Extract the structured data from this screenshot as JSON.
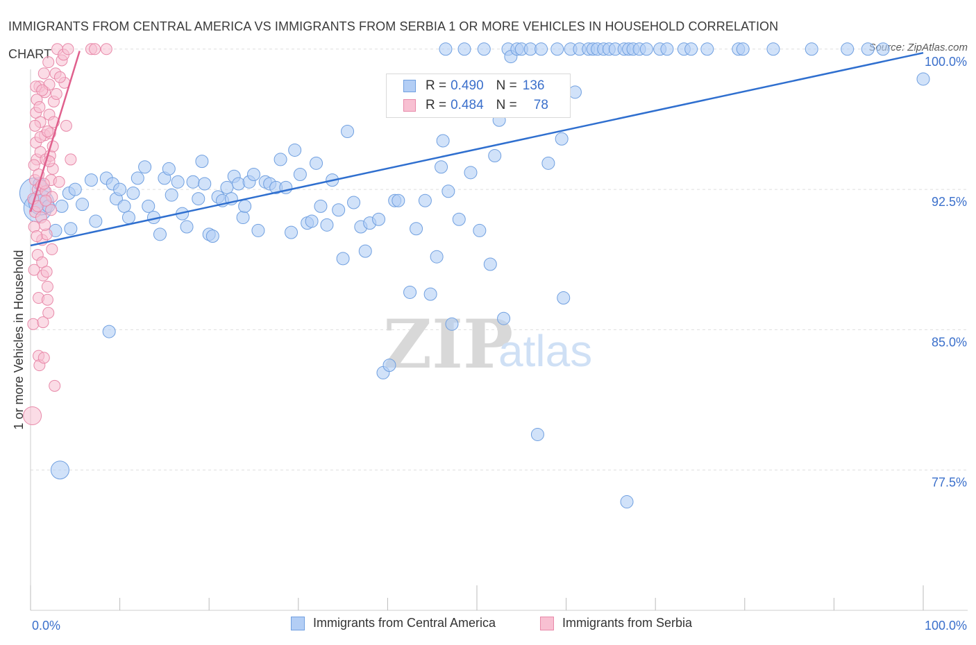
{
  "title": "IMMIGRANTS FROM CENTRAL AMERICA VS IMMIGRANTS FROM SERBIA 1 OR MORE VEHICLES IN HOUSEHOLD CORRELATION CHART",
  "source": "Source: ZipAtlas.com",
  "watermark": {
    "zip": "ZIP",
    "atlas": "atlas"
  },
  "colors": {
    "blue_fill": "#b3cef5",
    "blue_stroke": "#6f9fe0",
    "blue_line": "#2f6fcf",
    "pink_fill": "#f8c0d2",
    "pink_stroke": "#e889a9",
    "pink_line": "#e0608d",
    "axis_text": "#3a6fcb",
    "grid": "#dddddd"
  },
  "legend": {
    "r_label": "R =",
    "n_label": "N =",
    "rows": [
      {
        "r": "0.490",
        "n": "136"
      },
      {
        "r": "0.484",
        "n": "78"
      }
    ]
  },
  "chart_data": {
    "type": "scatter",
    "title": "IMMIGRANTS FROM CENTRAL AMERICA VS IMMIGRANTS FROM SERBIA 1 OR MORE VEHICLES IN HOUSEHOLD CORRELATION CHART",
    "xlabel": "",
    "ylabel": "1 or more Vehicles in Household",
    "xlim": [
      0,
      100
    ],
    "ylim": [
      70,
      100.4
    ],
    "x_tick_labels": [
      "0.0%",
      "100.0%"
    ],
    "y_ticks": [
      77.5,
      85.0,
      92.5,
      100.0
    ],
    "y_tick_labels": [
      "77.5%",
      "85.0%",
      "92.5%",
      "100.0%"
    ],
    "grid": true,
    "legend_position": "top-center",
    "series": [
      {
        "name": "Immigrants from Central America",
        "color": "#b3cef5",
        "trend": {
          "x": [
            0,
            100
          ],
          "y": [
            89.5,
            99.8
          ]
        },
        "points": [
          [
            0.5,
            92.3
          ],
          [
            0.8,
            91.5
          ],
          [
            1.2,
            91.8
          ],
          [
            1.0,
            92.8
          ],
          [
            2.0,
            91.6
          ],
          [
            2.8,
            90.3
          ],
          [
            3.5,
            91.6
          ],
          [
            4.3,
            92.3
          ],
          [
            4.5,
            90.4
          ],
          [
            5.0,
            92.5
          ],
          [
            5.8,
            91.7
          ],
          [
            6.8,
            93.0
          ],
          [
            7.3,
            90.8
          ],
          [
            8.5,
            93.1
          ],
          [
            9.2,
            92.8
          ],
          [
            9.6,
            92.0
          ],
          [
            10.0,
            92.5
          ],
          [
            10.5,
            91.6
          ],
          [
            11.0,
            91.0
          ],
          [
            11.5,
            92.3
          ],
          [
            12.0,
            93.1
          ],
          [
            12.8,
            93.7
          ],
          [
            13.2,
            91.6
          ],
          [
            13.8,
            91.0
          ],
          [
            14.5,
            90.1
          ],
          [
            15.0,
            93.1
          ],
          [
            15.5,
            93.6
          ],
          [
            15.8,
            92.2
          ],
          [
            16.5,
            92.9
          ],
          [
            17.0,
            91.2
          ],
          [
            17.5,
            90.5
          ],
          [
            18.2,
            92.9
          ],
          [
            18.8,
            92.0
          ],
          [
            19.2,
            94.0
          ],
          [
            19.5,
            92.8
          ],
          [
            20.0,
            90.1
          ],
          [
            20.4,
            90.0
          ],
          [
            21.0,
            92.1
          ],
          [
            21.5,
            91.9
          ],
          [
            22.0,
            92.6
          ],
          [
            22.5,
            92.0
          ],
          [
            22.8,
            93.2
          ],
          [
            23.3,
            92.8
          ],
          [
            23.8,
            91.0
          ],
          [
            24.0,
            91.6
          ],
          [
            24.5,
            92.9
          ],
          [
            25.0,
            93.3
          ],
          [
            25.5,
            90.3
          ],
          [
            26.3,
            92.9
          ],
          [
            26.8,
            92.8
          ],
          [
            27.5,
            92.6
          ],
          [
            28.0,
            94.1
          ],
          [
            28.6,
            92.6
          ],
          [
            29.2,
            90.2
          ],
          [
            29.6,
            94.6
          ],
          [
            30.2,
            93.3
          ],
          [
            31.0,
            90.7
          ],
          [
            31.5,
            90.8
          ],
          [
            32.0,
            93.9
          ],
          [
            32.5,
            91.6
          ],
          [
            33.2,
            90.6
          ],
          [
            33.8,
            93.0
          ],
          [
            34.5,
            91.4
          ],
          [
            35.0,
            88.8
          ],
          [
            35.5,
            95.6
          ],
          [
            36.2,
            91.8
          ],
          [
            37.0,
            90.5
          ],
          [
            37.5,
            89.2
          ],
          [
            38.0,
            90.7
          ],
          [
            39.0,
            90.9
          ],
          [
            39.5,
            82.7
          ],
          [
            40.2,
            83.1
          ],
          [
            40.8,
            91.9
          ],
          [
            41.2,
            91.9
          ],
          [
            41.8,
            98.0
          ],
          [
            42.5,
            87.0
          ],
          [
            43.2,
            90.4
          ],
          [
            43.8,
            96.8
          ],
          [
            44.2,
            91.9
          ],
          [
            44.8,
            86.9
          ],
          [
            45.5,
            88.9
          ],
          [
            46.0,
            93.7
          ],
          [
            46.2,
            95.1
          ],
          [
            46.8,
            92.4
          ],
          [
            46.5,
            100.0
          ],
          [
            47.2,
            85.3
          ],
          [
            48.0,
            90.9
          ],
          [
            48.6,
            100.0
          ],
          [
            49.3,
            93.4
          ],
          [
            50.3,
            90.3
          ],
          [
            50.8,
            100.0
          ],
          [
            51.5,
            88.5
          ],
          [
            52.0,
            94.3
          ],
          [
            52.5,
            96.2
          ],
          [
            53.0,
            85.6
          ],
          [
            53.5,
            100.0
          ],
          [
            53.8,
            99.6
          ],
          [
            54.5,
            100.0
          ],
          [
            55.0,
            100.0
          ],
          [
            56.0,
            100.0
          ],
          [
            56.8,
            79.4
          ],
          [
            57.2,
            100.0
          ],
          [
            58.0,
            93.9
          ],
          [
            59.0,
            100.0
          ],
          [
            59.5,
            95.2
          ],
          [
            59.7,
            86.7
          ],
          [
            60.5,
            100.0
          ],
          [
            61.0,
            97.7
          ],
          [
            61.5,
            100.0
          ],
          [
            62.5,
            100.0
          ],
          [
            63.0,
            100.0
          ],
          [
            63.5,
            100.0
          ],
          [
            64.2,
            100.0
          ],
          [
            64.8,
            100.0
          ],
          [
            65.5,
            100.0
          ],
          [
            66.5,
            100.0
          ],
          [
            67.0,
            100.0
          ],
          [
            67.5,
            100.0
          ],
          [
            68.2,
            100.0
          ],
          [
            69.0,
            100.0
          ],
          [
            70.5,
            100.0
          ],
          [
            71.3,
            100.0
          ],
          [
            73.2,
            100.0
          ],
          [
            74.0,
            100.0
          ],
          [
            75.8,
            100.0
          ],
          [
            79.3,
            100.0
          ],
          [
            79.8,
            100.0
          ],
          [
            83.2,
            100.0
          ],
          [
            87.5,
            100.0
          ],
          [
            91.5,
            100.0
          ],
          [
            93.8,
            100.0
          ],
          [
            95.5,
            100.0
          ],
          [
            100.0,
            98.4
          ],
          [
            3.3,
            77.5
          ],
          [
            8.8,
            84.9
          ],
          [
            66.8,
            75.8
          ]
        ],
        "sizes": [
          [
            0.5,
            92.3,
            44
          ],
          [
            0.8,
            91.5,
            40
          ],
          [
            1.2,
            91.8,
            36
          ],
          [
            3.3,
            77.5,
            26
          ]
        ]
      },
      {
        "name": "Immigrants from Serbia",
        "color": "#f8c0d2",
        "trend": {
          "x": [
            0,
            5.5
          ],
          "y": [
            91.3,
            99.9
          ]
        },
        "points": [
          [
            0.2,
            80.4
          ],
          [
            0.3,
            85.3
          ],
          [
            0.4,
            88.2
          ],
          [
            0.4,
            90.5
          ],
          [
            0.5,
            91.3
          ],
          [
            0.5,
            93.0
          ],
          [
            0.6,
            95.0
          ],
          [
            0.6,
            96.6
          ],
          [
            0.7,
            97.3
          ],
          [
            0.7,
            94.1
          ],
          [
            0.8,
            92.5
          ],
          [
            0.8,
            89.0
          ],
          [
            0.9,
            86.7
          ],
          [
            0.9,
            83.6
          ],
          [
            1.0,
            83.1
          ],
          [
            1.0,
            98.0
          ],
          [
            1.1,
            96.1
          ],
          [
            1.1,
            94.5
          ],
          [
            1.2,
            92.7
          ],
          [
            1.2,
            91.0
          ],
          [
            1.3,
            89.8
          ],
          [
            1.3,
            88.6
          ],
          [
            1.4,
            87.9
          ],
          [
            1.4,
            85.4
          ],
          [
            1.5,
            83.5
          ],
          [
            1.5,
            98.7
          ],
          [
            1.6,
            97.7
          ],
          [
            1.6,
            95.4
          ],
          [
            1.7,
            94.1
          ],
          [
            1.7,
            92.4
          ],
          [
            1.8,
            90.1
          ],
          [
            1.8,
            88.1
          ],
          [
            1.9,
            86.6
          ],
          [
            1.9,
            87.3
          ],
          [
            2.0,
            85.9
          ],
          [
            2.0,
            99.3
          ],
          [
            2.1,
            98.1
          ],
          [
            2.1,
            96.5
          ],
          [
            2.2,
            95.5
          ],
          [
            2.2,
            94.3
          ],
          [
            2.3,
            93.0
          ],
          [
            2.3,
            91.4
          ],
          [
            2.4,
            89.3
          ],
          [
            2.4,
            92.1
          ],
          [
            2.5,
            93.6
          ],
          [
            2.5,
            94.8
          ],
          [
            2.6,
            96.1
          ],
          [
            2.6,
            97.2
          ],
          [
            2.7,
            82.0
          ],
          [
            2.8,
            98.7
          ],
          [
            3.0,
            100.0
          ],
          [
            3.2,
            92.9
          ],
          [
            3.5,
            99.4
          ],
          [
            3.7,
            99.7
          ],
          [
            3.8,
            98.2
          ],
          [
            4.0,
            95.9
          ],
          [
            4.2,
            100.0
          ],
          [
            4.5,
            94.1
          ],
          [
            0.3,
            92.0
          ],
          [
            0.4,
            93.8
          ],
          [
            0.5,
            95.9
          ],
          [
            0.6,
            98.0
          ],
          [
            0.7,
            90.0
          ],
          [
            0.8,
            91.6
          ],
          [
            0.9,
            93.3
          ],
          [
            1.0,
            96.9
          ],
          [
            1.1,
            95.3
          ],
          [
            1.3,
            97.8
          ],
          [
            1.5,
            92.8
          ],
          [
            1.7,
            91.9
          ],
          [
            1.9,
            95.6
          ],
          [
            2.1,
            94.0
          ],
          [
            6.8,
            100.0
          ],
          [
            7.2,
            100.0
          ],
          [
            8.5,
            100.0
          ],
          [
            3.3,
            98.5
          ],
          [
            2.9,
            97.6
          ],
          [
            1.6,
            90.6
          ]
        ]
      }
    ]
  },
  "bottom_legend": [
    "Immigrants from Central America",
    "Immigrants from Serbia"
  ]
}
